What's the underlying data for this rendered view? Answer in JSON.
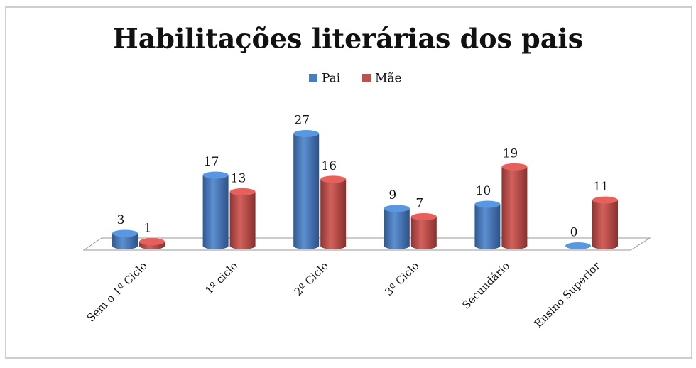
{
  "chart_data": {
    "type": "bar3d",
    "title": "Habilitações literárias dos pais",
    "categories": [
      "Sem o 1º Ciclo",
      "1º ciclo",
      "2º Ciclo",
      "3º Ciclo",
      "Secundário",
      "Ensino Superior"
    ],
    "series": [
      {
        "name": "Pai",
        "color": "#4a7ebb",
        "values": [
          3,
          17,
          27,
          9,
          10,
          0
        ]
      },
      {
        "name": "Mãe",
        "color": "#c0504d",
        "values": [
          1,
          13,
          16,
          7,
          19,
          11
        ]
      }
    ],
    "legend": "top"
  }
}
